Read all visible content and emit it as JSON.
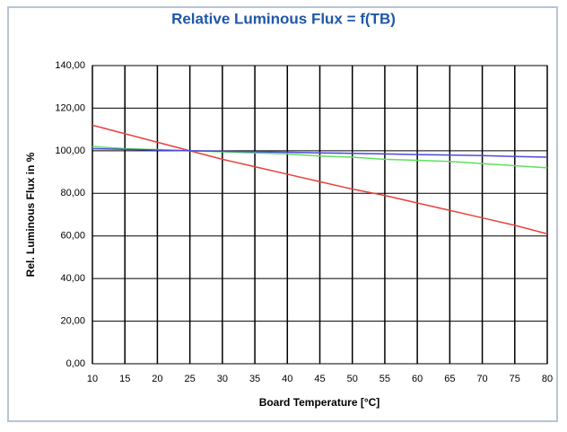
{
  "chart_data": {
    "type": "line",
    "title": "Relative Luminous Flux = f(TB)",
    "x_label": "Board Temperature [°C]",
    "y_label": "Rel. Luminous Flux in %",
    "x": [
      10,
      15,
      20,
      25,
      30,
      35,
      40,
      45,
      50,
      55,
      60,
      65,
      70,
      75,
      80
    ],
    "xlim": [
      10,
      80
    ],
    "xticks": [
      10,
      15,
      20,
      25,
      30,
      35,
      40,
      45,
      50,
      55,
      60,
      65,
      70,
      75,
      80
    ],
    "ylim": [
      0,
      140
    ],
    "yticks": [
      {
        "value": 0,
        "label": "0,00"
      },
      {
        "value": 20,
        "label": "20,00"
      },
      {
        "value": 40,
        "label": "40,00"
      },
      {
        "value": 60,
        "label": "60,00"
      },
      {
        "value": 80,
        "label": "80,00"
      },
      {
        "value": 100,
        "label": "100,00"
      },
      {
        "value": 120,
        "label": "120,00"
      },
      {
        "value": 140,
        "label": "140,00"
      }
    ],
    "grid": true,
    "series": [
      {
        "color": "#e8413c",
        "values": [
          112,
          108,
          104,
          100,
          96,
          92.5,
          89,
          85.5,
          82,
          79,
          75.5,
          72,
          68.5,
          65,
          61
        ]
      },
      {
        "color": "#5fe05f",
        "values": [
          102,
          101,
          100.5,
          100,
          99.5,
          99,
          98.5,
          97.5,
          97,
          96,
          95.5,
          95,
          94,
          93,
          92
        ]
      },
      {
        "color": "#4a4ad8",
        "values": [
          101,
          100.7,
          100.3,
          100,
          99.8,
          99.5,
          99.3,
          99,
          98.8,
          98.5,
          98.2,
          98,
          97.7,
          97.3,
          97
        ]
      }
    ]
  }
}
